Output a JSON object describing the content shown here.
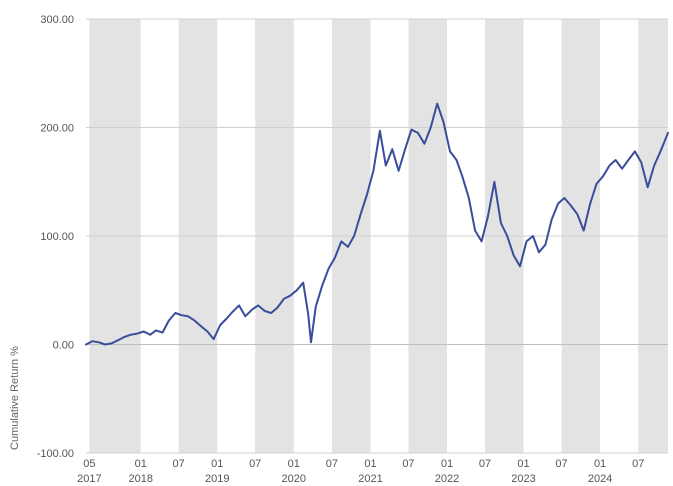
{
  "chart_data": {
    "type": "line",
    "title": "",
    "xlabel": "",
    "ylabel": "Cumulative Return %",
    "ylim": [
      -100,
      300
    ],
    "y_ticks": [
      300,
      200,
      100,
      0,
      -100
    ],
    "y_tick_labels": [
      "300.00",
      "200.00",
      "100.00",
      "0.00",
      "-100.00"
    ],
    "x_range": [
      "2017-04-15",
      "2024-11-20"
    ],
    "x_ticks": [
      {
        "date": "2017-05-01",
        "month": "05",
        "year": "2017"
      },
      {
        "date": "2018-01-01",
        "month": "01",
        "year": "2018"
      },
      {
        "date": "2018-07-01",
        "month": "07",
        "year": ""
      },
      {
        "date": "2019-01-01",
        "month": "01",
        "year": "2019"
      },
      {
        "date": "2019-07-01",
        "month": "07",
        "year": ""
      },
      {
        "date": "2020-01-01",
        "month": "01",
        "year": "2020"
      },
      {
        "date": "2020-07-01",
        "month": "07",
        "year": ""
      },
      {
        "date": "2021-01-01",
        "month": "01",
        "year": "2021"
      },
      {
        "date": "2021-07-01",
        "month": "07",
        "year": ""
      },
      {
        "date": "2022-01-01",
        "month": "01",
        "year": "2022"
      },
      {
        "date": "2022-07-01",
        "month": "07",
        "year": ""
      },
      {
        "date": "2023-01-01",
        "month": "01",
        "year": "2023"
      },
      {
        "date": "2023-07-01",
        "month": "07",
        "year": ""
      },
      {
        "date": "2024-01-01",
        "month": "01",
        "year": "2024"
      },
      {
        "date": "2024-07-01",
        "month": "07",
        "year": ""
      }
    ],
    "shaded_bands": [
      [
        "2017-05-01",
        "2018-01-01"
      ],
      [
        "2018-07-01",
        "2019-01-01"
      ],
      [
        "2019-07-01",
        "2020-01-01"
      ],
      [
        "2020-07-01",
        "2021-01-01"
      ],
      [
        "2021-07-01",
        "2022-01-01"
      ],
      [
        "2022-07-01",
        "2023-01-01"
      ],
      [
        "2023-07-01",
        "2024-01-01"
      ],
      [
        "2024-07-01",
        "2024-11-20"
      ]
    ],
    "grid": true,
    "colors": {
      "line": "#3a4d9b",
      "band": "#e3e3e3",
      "grid": "#d0d0d0",
      "zero_line": "#bfbfbf",
      "tick_text": "#555555"
    },
    "series": [
      {
        "points": [
          [
            "2017-04-15",
            0
          ],
          [
            "2017-05-15",
            3
          ],
          [
            "2017-06-15",
            2
          ],
          [
            "2017-07-15",
            0
          ],
          [
            "2017-08-15",
            1
          ],
          [
            "2017-09-15",
            4
          ],
          [
            "2017-10-15",
            7
          ],
          [
            "2017-11-15",
            9
          ],
          [
            "2017-12-15",
            10
          ],
          [
            "2018-01-15",
            12
          ],
          [
            "2018-02-15",
            9
          ],
          [
            "2018-03-15",
            13
          ],
          [
            "2018-04-15",
            11
          ],
          [
            "2018-05-15",
            22
          ],
          [
            "2018-06-15",
            29
          ],
          [
            "2018-07-15",
            27
          ],
          [
            "2018-08-15",
            26
          ],
          [
            "2018-09-15",
            22
          ],
          [
            "2018-10-15",
            17
          ],
          [
            "2018-11-15",
            12
          ],
          [
            "2018-12-15",
            5
          ],
          [
            "2019-01-15",
            18
          ],
          [
            "2019-02-15",
            24
          ],
          [
            "2019-03-15",
            30
          ],
          [
            "2019-04-15",
            36
          ],
          [
            "2019-05-15",
            26
          ],
          [
            "2019-06-15",
            32
          ],
          [
            "2019-07-15",
            36
          ],
          [
            "2019-08-15",
            31
          ],
          [
            "2019-09-15",
            29
          ],
          [
            "2019-10-15",
            34
          ],
          [
            "2019-11-15",
            42
          ],
          [
            "2019-12-15",
            45
          ],
          [
            "2020-01-15",
            50
          ],
          [
            "2020-02-15",
            57
          ],
          [
            "2020-03-10",
            28
          ],
          [
            "2020-03-23",
            2
          ],
          [
            "2020-04-15",
            35
          ],
          [
            "2020-05-15",
            54
          ],
          [
            "2020-06-15",
            70
          ],
          [
            "2020-07-15",
            80
          ],
          [
            "2020-08-15",
            95
          ],
          [
            "2020-09-15",
            90
          ],
          [
            "2020-10-15",
            100
          ],
          [
            "2020-11-15",
            120
          ],
          [
            "2020-12-15",
            138
          ],
          [
            "2021-01-15",
            160
          ],
          [
            "2021-02-15",
            197
          ],
          [
            "2021-03-15",
            165
          ],
          [
            "2021-04-15",
            180
          ],
          [
            "2021-05-15",
            160
          ],
          [
            "2021-06-15",
            180
          ],
          [
            "2021-07-15",
            198
          ],
          [
            "2021-08-15",
            195
          ],
          [
            "2021-09-15",
            185
          ],
          [
            "2021-10-15",
            200
          ],
          [
            "2021-11-15",
            222
          ],
          [
            "2021-12-15",
            205
          ],
          [
            "2022-01-15",
            178
          ],
          [
            "2022-02-15",
            170
          ],
          [
            "2022-03-15",
            155
          ],
          [
            "2022-04-15",
            135
          ],
          [
            "2022-05-15",
            105
          ],
          [
            "2022-06-15",
            95
          ],
          [
            "2022-07-15",
            118
          ],
          [
            "2022-08-15",
            150
          ],
          [
            "2022-09-15",
            112
          ],
          [
            "2022-10-15",
            100
          ],
          [
            "2022-11-15",
            82
          ],
          [
            "2022-12-15",
            72
          ],
          [
            "2023-01-15",
            95
          ],
          [
            "2023-02-15",
            100
          ],
          [
            "2023-03-15",
            85
          ],
          [
            "2023-04-15",
            92
          ],
          [
            "2023-05-15",
            115
          ],
          [
            "2023-06-15",
            130
          ],
          [
            "2023-07-15",
            135
          ],
          [
            "2023-08-15",
            128
          ],
          [
            "2023-09-15",
            120
          ],
          [
            "2023-10-15",
            105
          ],
          [
            "2023-11-15",
            130
          ],
          [
            "2023-12-15",
            148
          ],
          [
            "2024-01-15",
            155
          ],
          [
            "2024-02-15",
            165
          ],
          [
            "2024-03-15",
            170
          ],
          [
            "2024-04-15",
            162
          ],
          [
            "2024-05-15",
            170
          ],
          [
            "2024-06-15",
            178
          ],
          [
            "2024-07-15",
            168
          ],
          [
            "2024-08-15",
            145
          ],
          [
            "2024-09-15",
            165
          ],
          [
            "2024-10-15",
            178
          ],
          [
            "2024-11-20",
            195
          ]
        ]
      }
    ]
  }
}
